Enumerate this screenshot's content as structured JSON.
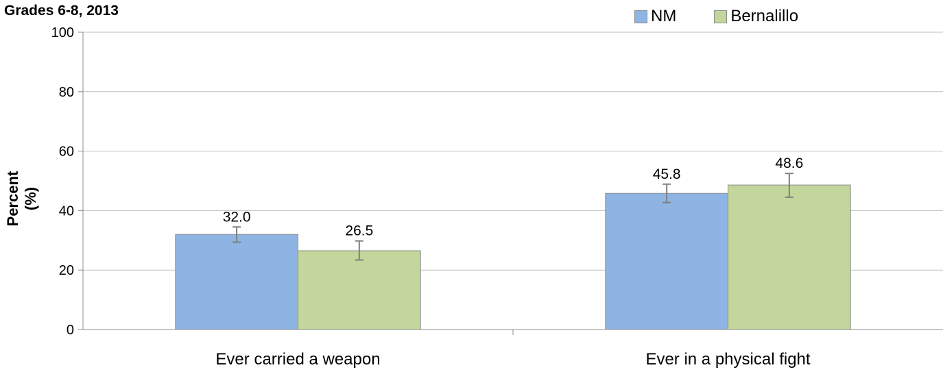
{
  "chart_data": {
    "type": "bar",
    "title": "Grades 6-8, 2013",
    "ylabel": "Percent (%)",
    "xlabel": "",
    "ylim": [
      0,
      100
    ],
    "yticks": [
      0,
      20,
      40,
      60,
      80,
      100
    ],
    "categories": [
      "Ever carried a weapon",
      "Ever in a physical fight"
    ],
    "series": [
      {
        "name": "NM",
        "color": "#8eb4e3",
        "values": [
          32.0,
          45.8
        ],
        "labels": [
          "32.0",
          "45.8"
        ],
        "error_low": [
          29.4,
          42.7
        ],
        "error_high": [
          34.5,
          48.9
        ]
      },
      {
        "name": "Bernalillo",
        "color": "#c3d69b",
        "values": [
          26.5,
          48.6
        ],
        "labels": [
          "26.5",
          "48.6"
        ],
        "error_low": [
          23.4,
          44.5
        ],
        "error_high": [
          29.8,
          52.5
        ]
      }
    ],
    "grid": true,
    "legend_position": "top-right"
  }
}
